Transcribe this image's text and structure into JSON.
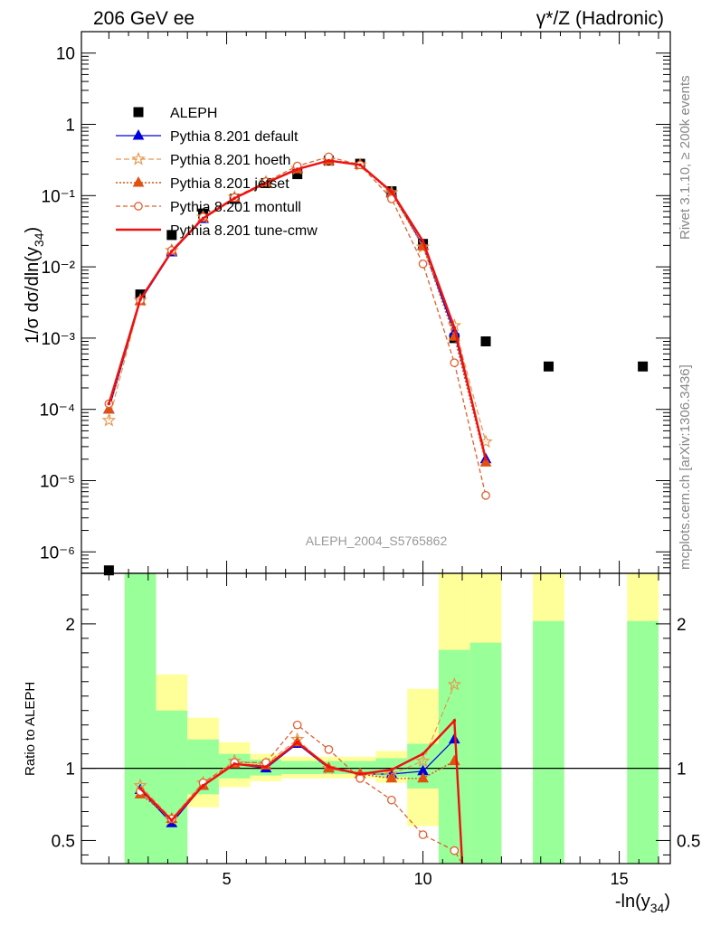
{
  "header": {
    "left": "206 GeV ee",
    "right": "γ*/Z (Hadronic)"
  },
  "side_text": {
    "rivet": "Rivet 3.1.10, ≥ 200k events",
    "mcplots": "mcplots.cern.ch [arXiv:1306.3436]"
  },
  "watermark": "ALEPH_2004_S5765862",
  "chart_data": [
    {
      "type": "scatter",
      "panel": "main",
      "ylabel": "1/σ  dσ/dln(y34)",
      "ylabel_parts": {
        "main": "1/σ  dσ/dln(y",
        "sub": "34",
        "close": ")"
      },
      "y_scale": "log",
      "ylim": [
        5e-07,
        20
      ],
      "xlim": [
        1.3,
        16.3
      ],
      "y_tick_labels": [
        "10",
        "1",
        "10⁻¹",
        "10⁻²",
        "10⁻³",
        "10⁻⁴",
        "10⁻⁵",
        "10⁻⁶"
      ],
      "legend_position": "top-left",
      "series": [
        {
          "name": "ALEPH",
          "color": "#000000",
          "style": "data",
          "x": [
            2.0,
            2.8,
            3.6,
            4.4,
            5.2,
            6.0,
            6.8,
            7.6,
            8.4,
            9.2,
            10.0,
            10.8,
            11.6,
            13.2,
            15.6
          ],
          "y": [
            5.5e-07,
            0.0041,
            0.028,
            0.056,
            0.09,
            0.15,
            0.2,
            0.31,
            0.28,
            0.115,
            0.021,
            0.001,
            0.0009,
            0.0004,
            0.0004
          ]
        },
        {
          "name": "Pythia 8.201 default",
          "color": "#0000dd",
          "style": "default",
          "x": [
            2.0,
            2.8,
            3.6,
            4.4,
            5.2,
            6.0,
            6.8,
            7.6,
            8.4,
            9.2,
            10.0,
            10.8,
            11.6
          ],
          "y": [
            0.0001,
            0.0033,
            0.016,
            0.047,
            0.092,
            0.152,
            0.24,
            0.31,
            0.27,
            0.11,
            0.02,
            0.0012,
            2e-05
          ]
        },
        {
          "name": "Pythia 8.201 hoeth",
          "color": "#e89850",
          "style": "hoeth",
          "x": [
            2.0,
            2.8,
            3.6,
            4.4,
            5.2,
            6.0,
            6.8,
            7.6,
            8.4,
            9.2,
            10.0,
            10.8,
            11.6
          ],
          "y": [
            7e-05,
            0.0034,
            0.017,
            0.05,
            0.095,
            0.155,
            0.24,
            0.31,
            0.27,
            0.11,
            0.019,
            0.0015,
            3.5e-05
          ]
        },
        {
          "name": "Pythia 8.201 jetset",
          "color": "#e05010",
          "style": "jetset",
          "x": [
            2.0,
            2.8,
            3.6,
            4.4,
            5.2,
            6.0,
            6.8,
            7.6,
            8.4,
            9.2,
            10.0,
            10.8,
            11.6
          ],
          "y": [
            0.0001,
            0.0033,
            0.017,
            0.049,
            0.093,
            0.152,
            0.235,
            0.31,
            0.27,
            0.107,
            0.0195,
            0.00105,
            1.8e-05
          ]
        },
        {
          "name": "Pythia 8.201 montull",
          "color": "#e06030",
          "style": "montull",
          "x": [
            2.0,
            2.8,
            3.6,
            4.4,
            5.2,
            6.0,
            6.8,
            7.6,
            8.4,
            9.2,
            10.0,
            10.8,
            11.6
          ],
          "y": [
            0.00012,
            0.0034,
            0.017,
            0.05,
            0.094,
            0.157,
            0.26,
            0.35,
            0.27,
            0.09,
            0.011,
            0.00045,
            6.2e-06
          ]
        },
        {
          "name": "Pythia 8.201 tune-cmw",
          "color": "#ee1111",
          "style": "tunecmw",
          "x": [
            2.0,
            2.8,
            3.6,
            4.4,
            5.2,
            6.0,
            6.8,
            7.6,
            8.4,
            9.2,
            10.0,
            10.8,
            11.6
          ],
          "y": [
            0.00012,
            0.0035,
            0.0165,
            0.048,
            0.092,
            0.15,
            0.235,
            0.31,
            0.27,
            0.113,
            0.023,
            0.0014,
            2e-05
          ]
        }
      ]
    },
    {
      "type": "line",
      "panel": "ratio",
      "ylabel": "Ratio to ALEPH",
      "xlabel": "-ln(y34)",
      "xlabel_parts": {
        "main": "-ln(y",
        "sub": "34",
        "close": ")"
      },
      "ylim": [
        0.34,
        2.35
      ],
      "xlim": [
        1.3,
        16.3
      ],
      "x_tick_labels": [
        "5",
        "10",
        "15"
      ],
      "y_tick_labels": [
        "2",
        "1",
        "0.5"
      ],
      "bands": [
        {
          "x0": 2.4,
          "x1": 3.2,
          "y1_lo": 0.0,
          "y1_hi": 9.0,
          "y2_lo": 0.0,
          "y2_hi": 9.0
        },
        {
          "x0": 3.2,
          "x1": 4.0,
          "y1_lo": 0.0,
          "y1_hi": 1.4,
          "y2_lo": 0.4,
          "y2_hi": 1.65
        },
        {
          "x0": 4.0,
          "x1": 4.8,
          "y1_lo": 0.82,
          "y1_hi": 1.2,
          "y2_lo": 0.73,
          "y2_hi": 1.35
        },
        {
          "x0": 4.8,
          "x1": 5.6,
          "y1_lo": 0.93,
          "y1_hi": 1.1,
          "y2_lo": 0.87,
          "y2_hi": 1.18
        },
        {
          "x0": 5.6,
          "x1": 6.4,
          "y1_lo": 0.95,
          "y1_hi": 1.06,
          "y2_lo": 0.91,
          "y2_hi": 1.1
        },
        {
          "x0": 6.4,
          "x1": 7.2,
          "y1_lo": 0.96,
          "y1_hi": 1.05,
          "y2_lo": 0.93,
          "y2_hi": 1.08
        },
        {
          "x0": 7.2,
          "x1": 8.0,
          "y1_lo": 0.96,
          "y1_hi": 1.05,
          "y2_lo": 0.93,
          "y2_hi": 1.08
        },
        {
          "x0": 8.0,
          "x1": 8.8,
          "y1_lo": 0.96,
          "y1_hi": 1.05,
          "y2_lo": 0.93,
          "y2_hi": 1.08
        },
        {
          "x0": 8.8,
          "x1": 9.6,
          "y1_lo": 0.94,
          "y1_hi": 1.07,
          "y2_lo": 0.9,
          "y2_hi": 1.12
        },
        {
          "x0": 9.6,
          "x1": 10.4,
          "y1_lo": 0.86,
          "y1_hi": 1.17,
          "y2_lo": 0.6,
          "y2_hi": 1.55
        },
        {
          "x0": 10.4,
          "x1": 11.2,
          "y1_lo": 0.0,
          "y1_hi": 1.82,
          "y2_lo": 0.0,
          "y2_hi": 9.0
        },
        {
          "x0": 11.2,
          "x1": 12.0,
          "y1_lo": 0.0,
          "y1_hi": 1.87,
          "y2_lo": 0.0,
          "y2_hi": 9.0
        },
        {
          "x0": 12.8,
          "x1": 13.6,
          "y1_lo": 0.0,
          "y1_hi": 2.02,
          "y2_lo": 0.0,
          "y2_hi": 9.0
        },
        {
          "x0": 15.2,
          "x1": 16.0,
          "y1_lo": 0.0,
          "y1_hi": 2.02,
          "y2_lo": 0.0,
          "y2_hi": 9.0
        }
      ],
      "series": [
        {
          "name": "Pythia 8.201 default",
          "color": "#0000dd",
          "style": "default",
          "x": [
            2.8,
            3.6,
            4.4,
            5.2,
            6.0,
            6.8,
            7.6,
            8.4,
            9.2,
            10.0,
            10.8
          ],
          "y": [
            0.85,
            0.62,
            0.88,
            1.03,
            1.0,
            1.17,
            1.0,
            0.96,
            0.96,
            0.98,
            1.2
          ]
        },
        {
          "name": "Pythia 8.201 hoeth",
          "color": "#e89850",
          "style": "hoeth",
          "x": [
            2.8,
            3.6,
            4.4,
            5.2,
            6.0,
            6.8,
            7.6,
            8.4,
            9.2,
            10.0,
            10.8
          ],
          "y": [
            0.88,
            0.65,
            0.9,
            1.05,
            1.03,
            1.2,
            1.0,
            0.96,
            0.96,
            1.05,
            1.58
          ]
        },
        {
          "name": "Pythia 8.201 jetset",
          "color": "#e05010",
          "style": "jetset",
          "x": [
            2.8,
            3.6,
            4.4,
            5.2,
            6.0,
            6.8,
            7.6,
            8.4,
            9.2,
            10.0,
            10.8
          ],
          "y": [
            0.82,
            0.65,
            0.88,
            1.03,
            1.02,
            1.18,
            1.0,
            0.96,
            0.93,
            0.93,
            1.05
          ]
        },
        {
          "name": "Pythia 8.201 montull",
          "color": "#e06030",
          "style": "montull",
          "x": [
            2.8,
            3.6,
            4.4,
            5.2,
            6.0,
            6.8,
            7.6,
            8.4,
            9.2,
            10.0,
            10.8,
            11.0
          ],
          "y": [
            0.84,
            0.65,
            0.9,
            1.04,
            1.04,
            1.3,
            1.13,
            0.93,
            0.78,
            0.54,
            0.43,
            0.2
          ]
        },
        {
          "name": "Pythia 8.201 tune-cmw",
          "color": "#ee1111",
          "style": "tunecmw",
          "x": [
            2.8,
            3.6,
            4.4,
            5.2,
            6.0,
            6.8,
            7.6,
            8.4,
            9.2,
            10.0,
            10.8,
            11.0
          ],
          "y": [
            0.86,
            0.64,
            0.88,
            1.03,
            1.01,
            1.18,
            1.01,
            0.96,
            0.99,
            1.1,
            1.33,
            0.2
          ]
        }
      ]
    }
  ]
}
